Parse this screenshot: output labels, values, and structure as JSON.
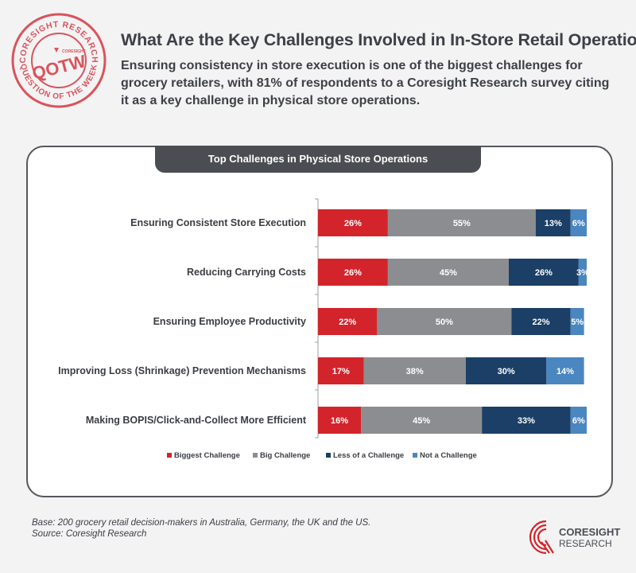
{
  "stamp": {
    "top_text": "CORESIGHT RESEARCH",
    "center_text": "QOTW",
    "bottom_text": "QUESTION OF THE WEEK",
    "small_logo_text": "CORESIGHT"
  },
  "header": {
    "title": "What Are the Key Challenges Involved in In-Store Retail Operations?",
    "subtitle": "Ensuring consistency in store execution is one of the biggest challenges for grocery retailers, with 81% of respondents to a Coresight Research survey citing it as a key challenge in physical store operations."
  },
  "chart_data": {
    "type": "bar",
    "orientation": "horizontal",
    "stacked": true,
    "title": "Top Challenges in Physical Store Operations",
    "categories": [
      "Ensuring Consistent Store Execution",
      "Reducing Carrying Costs",
      "Ensuring Employee Productivity",
      "Improving Loss (Shrinkage) Prevention Mechanisms",
      "Making BOPIS/Click-and-Collect More Efficient"
    ],
    "series": [
      {
        "name": "Biggest Challenge",
        "color": "#d3242b",
        "values": [
          26,
          26,
          22,
          17,
          16
        ]
      },
      {
        "name": "Big Challenge",
        "color": "#8b8d91",
        "values": [
          55,
          45,
          50,
          38,
          45
        ]
      },
      {
        "name": "Less of a Challenge",
        "color": "#1b3f66",
        "values": [
          13,
          26,
          22,
          30,
          33
        ]
      },
      {
        "name": "Not a Challenge",
        "color": "#4a86c0",
        "values": [
          6,
          3,
          5,
          14,
          6
        ]
      }
    ],
    "value_suffix": "%",
    "xlim": [
      0,
      100
    ],
    "legend": "bottom",
    "grid": false
  },
  "footer": {
    "base": "Base: 200 grocery retail decision-makers in Australia, Germany, the UK and the US.",
    "source": "Source: Coresight Research"
  },
  "logo": {
    "line1": "CORESIGHT",
    "line2": "RESEARCH",
    "color": "#d3242b"
  }
}
